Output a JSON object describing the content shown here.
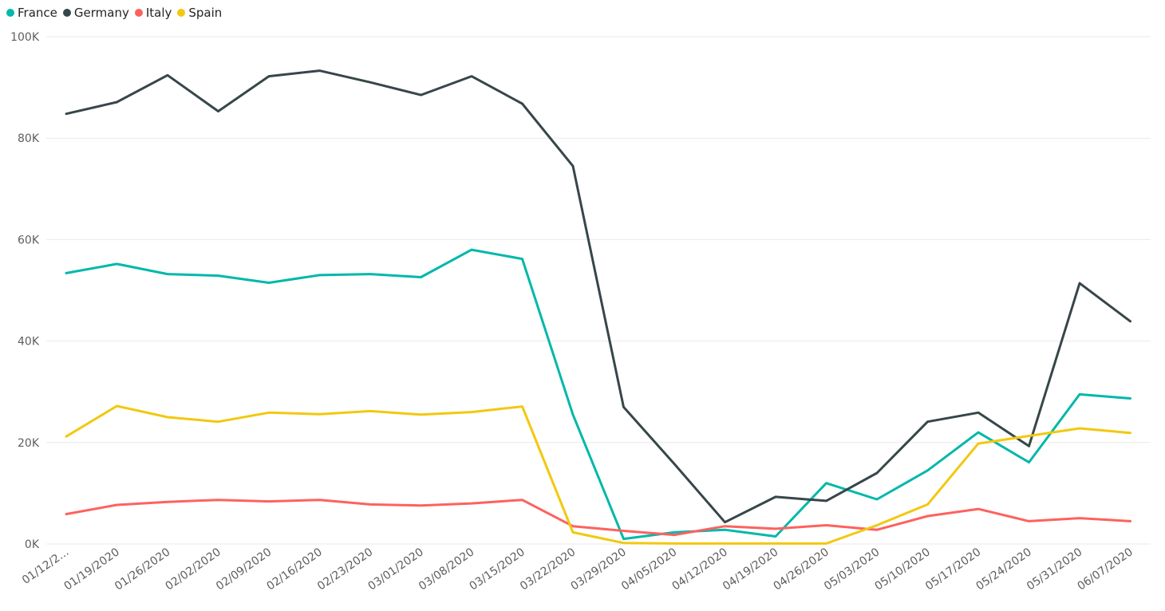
{
  "chart_data": {
    "type": "line",
    "title": "",
    "xlabel": "",
    "ylabel": "",
    "ylim": [
      0,
      100000
    ],
    "y_ticks": [
      {
        "value": 0,
        "label": "0K"
      },
      {
        "value": 20000,
        "label": "20K"
      },
      {
        "value": 40000,
        "label": "40K"
      },
      {
        "value": 60000,
        "label": "60K"
      },
      {
        "value": 80000,
        "label": "80K"
      },
      {
        "value": 100000,
        "label": "100K"
      }
    ],
    "grid": "horizontal",
    "legend_position": "top-left",
    "x": [
      "01/12/2...",
      "01/19/2020",
      "01/26/2020",
      "02/02/2020",
      "02/09/2020",
      "02/16/2020",
      "02/23/2020",
      "03/01/2020",
      "03/08/2020",
      "03/15/2020",
      "03/22/2020",
      "03/29/2020",
      "04/05/2020",
      "04/12/2020",
      "04/19/2020",
      "04/26/2020",
      "05/03/2020",
      "05/10/2020",
      "05/17/2020",
      "05/24/2020",
      "05/31/2020",
      "06/07/2020"
    ],
    "series": [
      {
        "name": "France",
        "color": "#01b8aa",
        "values": [
          53400,
          55200,
          53200,
          52900,
          51500,
          53000,
          53200,
          52600,
          58000,
          56200,
          25500,
          1000,
          2300,
          2800,
          1500,
          12000,
          8800,
          14500,
          22000,
          16100,
          29500,
          28700
        ]
      },
      {
        "name": "Germany",
        "color": "#374649",
        "values": [
          84800,
          87100,
          92400,
          85300,
          92200,
          93300,
          91000,
          88500,
          92200,
          86800,
          74500,
          27000,
          15800,
          4300,
          9300,
          8500,
          14000,
          24100,
          25900,
          19300,
          51400,
          43900
        ]
      },
      {
        "name": "Italy",
        "color": "#fd625e",
        "values": [
          5900,
          7700,
          8300,
          8700,
          8400,
          8700,
          7800,
          7600,
          8000,
          8700,
          3500,
          2600,
          1800,
          3500,
          3000,
          3700,
          2800,
          5500,
          6900,
          4500,
          5100,
          4500
        ]
      },
      {
        "name": "Spain",
        "color": "#f2c80f",
        "values": [
          21200,
          27200,
          25000,
          24100,
          25900,
          25600,
          26200,
          25500,
          26000,
          27100,
          2300,
          200,
          100,
          100,
          100,
          100,
          3700,
          7800,
          19800,
          21300,
          22800,
          21900
        ]
      }
    ]
  }
}
